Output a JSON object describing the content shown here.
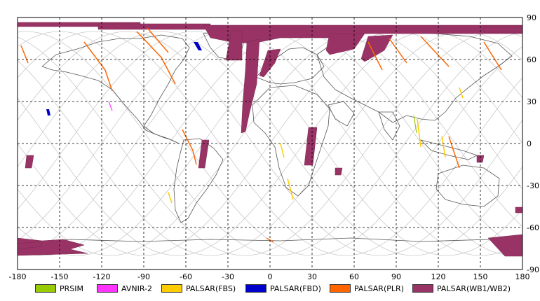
{
  "map": {
    "lon_ticks": [
      "-180",
      "-150",
      "-120",
      "-90",
      "-60",
      "-30",
      "0",
      "30",
      "60",
      "90",
      "120",
      "150",
      "180"
    ],
    "lat_ticks": [
      "90",
      "60",
      "30",
      "0",
      "-30",
      "-60",
      "-90"
    ]
  },
  "legend": [
    {
      "label": "PRSIM",
      "color": "#99cc00"
    },
    {
      "label": "AVNIR-2",
      "color": "#ff33ff"
    },
    {
      "label": "PALSAR(FBS)",
      "color": "#ffcc00"
    },
    {
      "label": "PALSAR(FBD)",
      "color": "#0000cc"
    },
    {
      "label": "PALSAR(PLR)",
      "color": "#ff6600"
    },
    {
      "label": "PALSAR(WB1/WB2)",
      "color": "#993366"
    }
  ]
}
